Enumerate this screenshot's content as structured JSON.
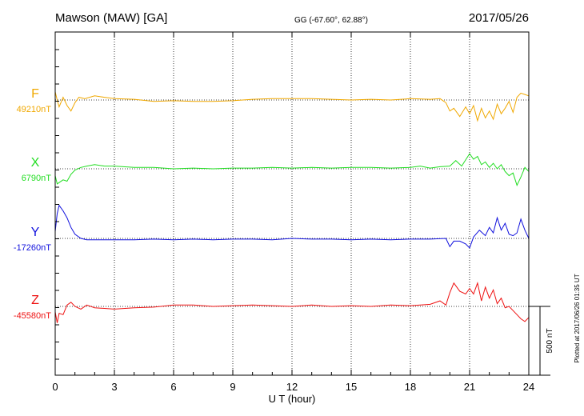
{
  "header": {
    "station": "Mawson (MAW)  [GA]",
    "coords": "GG (-67.60°,  62.88°)",
    "date": "2017/05/26"
  },
  "footer": {
    "plotted": "Plotted at 2017/06/26 01:35 UT"
  },
  "scale_bar": {
    "label": "500 nT",
    "value_nT": 500
  },
  "chart_data": {
    "type": "line",
    "title": "Mawson (MAW)  [GA]",
    "xlabel": "U T (hour)",
    "ylabel": "",
    "xlim": [
      0,
      24
    ],
    "x_ticks": [
      0,
      3,
      6,
      9,
      12,
      15,
      18,
      21,
      24
    ],
    "x_tick_labels": [
      "0",
      "3",
      "6",
      "9",
      "12",
      "15",
      "18",
      "21",
      "24"
    ],
    "grid": "vertical dotted at 3-hour intervals",
    "units": "nT",
    "series": [
      {
        "name": "F",
        "baseline_label": "49210nT",
        "baseline_nT": 49210,
        "color": "#f0a800",
        "x": [
          0,
          0.1,
          0.2,
          0.4,
          0.6,
          0.8,
          1.0,
          1.2,
          1.5,
          2,
          2.5,
          3,
          4,
          5,
          6,
          7,
          8,
          9,
          10,
          11,
          12,
          13,
          14,
          15,
          16,
          17,
          18,
          19,
          19.5,
          19.8,
          20.0,
          20.2,
          20.5,
          20.8,
          21.0,
          21.2,
          21.4,
          21.6,
          21.8,
          22.0,
          22.2,
          22.4,
          22.6,
          22.8,
          23.0,
          23.2,
          23.4,
          23.6,
          23.8,
          24
        ],
        "y": [
          60,
          0,
          -50,
          20,
          -40,
          -80,
          -20,
          20,
          10,
          30,
          20,
          10,
          5,
          -10,
          -5,
          -10,
          -10,
          -5,
          5,
          10,
          10,
          10,
          5,
          0,
          5,
          0,
          10,
          5,
          10,
          -20,
          -80,
          -60,
          -120,
          -50,
          -100,
          -40,
          -150,
          -60,
          -130,
          -80,
          -140,
          -30,
          -100,
          -60,
          -10,
          -90,
          20,
          50,
          40,
          30
        ]
      },
      {
        "name": "X",
        "baseline_label": "6790nT",
        "baseline_nT": 6790,
        "color": "#22dd22",
        "x": [
          0,
          0.1,
          0.2,
          0.4,
          0.6,
          0.8,
          1.0,
          1.3,
          1.6,
          2,
          2.5,
          3,
          4,
          5,
          6,
          7,
          8,
          9,
          10,
          11,
          12,
          13,
          14,
          15,
          16,
          17,
          18,
          18.5,
          19,
          19.5,
          20.0,
          20.3,
          20.6,
          21.0,
          21.2,
          21.4,
          21.6,
          21.8,
          22.0,
          22.2,
          22.4,
          22.6,
          22.8,
          23.0,
          23.2,
          23.4,
          23.6,
          23.8,
          24
        ],
        "y": [
          -50,
          -110,
          -100,
          -80,
          -90,
          -40,
          -10,
          10,
          20,
          30,
          20,
          20,
          10,
          10,
          0,
          5,
          0,
          5,
          5,
          10,
          5,
          10,
          5,
          10,
          10,
          5,
          10,
          20,
          5,
          15,
          20,
          60,
          20,
          110,
          70,
          90,
          30,
          50,
          10,
          40,
          0,
          30,
          -20,
          -50,
          -30,
          -120,
          -60,
          10,
          -20
        ]
      },
      {
        "name": "Y",
        "baseline_label": "-17260nT",
        "baseline_nT": -17260,
        "color": "#1010dd",
        "x": [
          0,
          0.1,
          0.2,
          0.4,
          0.6,
          0.8,
          1.0,
          1.3,
          1.6,
          2,
          3,
          4,
          5,
          6,
          7,
          8,
          9,
          10,
          11,
          12,
          13,
          14,
          15,
          16,
          17,
          18,
          19,
          19.8,
          20.0,
          20.2,
          20.5,
          20.8,
          21.0,
          21.2,
          21.5,
          21.8,
          22.0,
          22.2,
          22.4,
          22.6,
          22.8,
          23.0,
          23.2,
          23.4,
          23.6,
          23.8,
          24
        ],
        "y": [
          50,
          180,
          240,
          200,
          150,
          80,
          30,
          0,
          -10,
          -10,
          -10,
          -10,
          -5,
          -10,
          -5,
          -10,
          -5,
          -5,
          -10,
          0,
          -5,
          -5,
          -10,
          -5,
          -10,
          -5,
          -5,
          0,
          -60,
          -20,
          -20,
          -40,
          -70,
          10,
          60,
          20,
          80,
          40,
          150,
          60,
          110,
          30,
          20,
          40,
          140,
          60,
          0
        ]
      },
      {
        "name": "Z",
        "baseline_label": "-45580nT",
        "baseline_nT": -45580,
        "color": "#ee1111",
        "x": [
          0,
          0.1,
          0.2,
          0.4,
          0.6,
          0.8,
          1.0,
          1.3,
          1.6,
          2,
          3,
          4,
          5,
          6,
          7,
          8,
          9,
          10,
          11,
          12,
          13,
          14,
          15,
          16,
          17,
          18,
          19,
          19.5,
          19.8,
          20.0,
          20.2,
          20.5,
          20.8,
          21.0,
          21.2,
          21.4,
          21.6,
          21.8,
          22.0,
          22.2,
          22.4,
          22.6,
          22.8,
          23.0,
          23.2,
          23.4,
          23.6,
          23.8,
          24
        ],
        "y": [
          -40,
          -120,
          -50,
          -60,
          10,
          30,
          0,
          -20,
          10,
          -10,
          -20,
          -10,
          -5,
          10,
          10,
          0,
          5,
          10,
          5,
          0,
          10,
          0,
          5,
          0,
          10,
          5,
          15,
          40,
          10,
          100,
          170,
          110,
          90,
          130,
          90,
          170,
          40,
          140,
          60,
          120,
          20,
          60,
          -10,
          0,
          -30,
          -60,
          -90,
          -110,
          -80
        ]
      }
    ]
  }
}
